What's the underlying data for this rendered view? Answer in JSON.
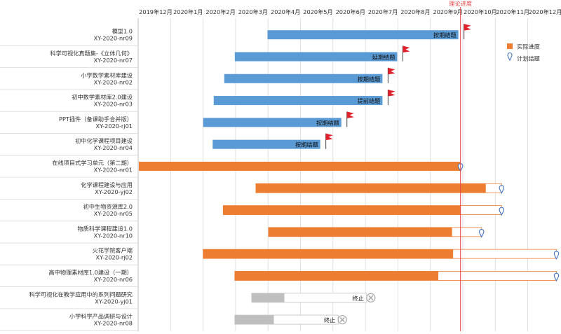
{
  "chart_data": {
    "type": "gantt",
    "title": "",
    "timeline": {
      "start": "2019-11-30",
      "end": "2020-12-31",
      "month_labels": [
        "2019年12月",
        "2020年1月",
        "2020年2月",
        "2020年3月",
        "2020年4月",
        "2020年5月",
        "2020年6月",
        "2020年7月",
        "2020年8月",
        "2020年9月",
        "2020年10月",
        "2020年11月",
        "2020年12月"
      ]
    },
    "theoretical_progress": {
      "label": "理论进度",
      "date": "2020-09-30"
    },
    "legend": [
      {
        "key": "actual",
        "label": "实际进度",
        "color": "#ed7d31"
      },
      {
        "key": "planned_end",
        "label": "计划结题",
        "color": "#4472c4"
      }
    ],
    "colors": {
      "completed": "#5b9bd5",
      "in_progress": "#ed7d31",
      "terminated": "#bfbfbf",
      "flag": "#e0202a",
      "today_line": "#e84848",
      "grid": "#d9d9d9",
      "pin": "#4472c4",
      "stop": "#a6a6a6"
    },
    "projects": [
      {
        "name": "模型1.0",
        "code": "XY-2020-nr09",
        "status": "completed",
        "start": "2020-03-31",
        "end": "2020-09-28",
        "label": "按期结题"
      },
      {
        "name": "科学可视化真题集-《立体几何》",
        "code": "XY-2020-nr07",
        "status": "completed",
        "start": "2020-02-29",
        "end": "2020-08-01",
        "label": "延期结题"
      },
      {
        "name": "小学数学素材库建设",
        "code": "XY-2020-nr02",
        "status": "completed",
        "start": "2020-02-19",
        "end": "2020-07-18",
        "label": "按期结题"
      },
      {
        "name": "初中数学素材库2.0建设",
        "code": "XY-2020-nr03",
        "status": "completed",
        "start": "2020-02-09",
        "end": "2020-07-18",
        "label": "提前结题"
      },
      {
        "name": "PPT插件（备课助手合并版）",
        "code": "XY-2020-rj01",
        "status": "completed",
        "start": "2020-01-30",
        "end": "2020-06-09",
        "label": "按期结题"
      },
      {
        "name": "初中化学课程项目建设",
        "code": "XY-2020-nr04",
        "status": "completed",
        "start": "2020-02-08",
        "end": "2020-05-20",
        "label": "按期结题"
      },
      {
        "name": "在线项目式学习单元（第二期）",
        "code": "XY-2020-nr01",
        "status": "in_progress",
        "start": "2019-11-30",
        "end": "2020-09-30",
        "planned_end": "2020-09-30"
      },
      {
        "name": "化学课程建设与应用",
        "code": "XY-2020-yj02",
        "status": "in_progress",
        "start": "2020-03-20",
        "end": "2020-10-24",
        "planned_end": "2020-11-08"
      },
      {
        "name": "初中生物资源库2.0",
        "code": "XY-2020-nr05",
        "status": "in_progress",
        "start": "2020-02-18",
        "end": "2020-09-30",
        "planned_end": "2020-11-08"
      },
      {
        "name": "物质科学课程建设1.0",
        "code": "XY-2020-nr10",
        "status": "in_progress",
        "start": "2020-04-01",
        "end": "2020-09-22",
        "planned_end": "2020-10-20"
      },
      {
        "name": "火花学院客户端",
        "code": "XY-2020-rj02",
        "status": "in_progress",
        "start": "2020-01-30",
        "end": "2020-09-23",
        "planned_end": "2020-12-30"
      },
      {
        "name": "高中物理素材库1.0建设（一期）",
        "code": "XY-2020-nr06",
        "status": "in_progress",
        "start": "2020-02-29",
        "end": "2020-09-09",
        "planned_end": "2020-12-30"
      },
      {
        "name": "科学可视化在教学应用中的系列问题研究",
        "code": "XY-2020-yj01",
        "status": "terminated",
        "start": "2020-03-16",
        "end": "2020-04-16",
        "planned_end": "2020-07-03",
        "label": "终止"
      },
      {
        "name": "小学科学产品调研与设计",
        "code": "XY-2020-nr08",
        "status": "terminated",
        "start": "2020-02-29",
        "end": "2020-04-06",
        "planned_end": "2020-06-06",
        "label": "终止"
      }
    ]
  }
}
